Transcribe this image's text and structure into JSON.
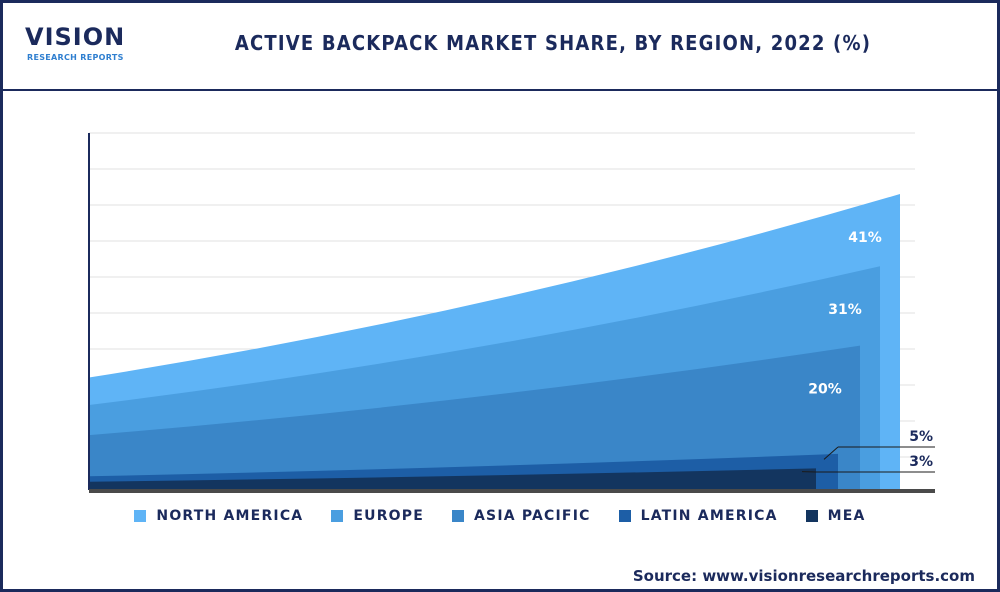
{
  "logo": {
    "name": "VISION",
    "sub": "RESEARCH REPORTS"
  },
  "source": "Source: www.visionresearchreports.com",
  "colors": {
    "north_america": "#5fb4f6",
    "europe": "#4a9ee0",
    "asia_pacific": "#3a86c8",
    "latin_america": "#1d5ea6",
    "mea": "#13355f",
    "axis": "#1b2a5c",
    "grid": "#e2e2e2"
  },
  "chart_data": {
    "type": "area",
    "title": "ACTIVE BACKPACK MARKET SHARE, BY REGION, 2022 (%)",
    "legend_position": "bottom",
    "grid": true,
    "series": [
      {
        "name": "NORTH AMERICA",
        "value": 41,
        "label": "41%"
      },
      {
        "name": "EUROPE",
        "value": 31,
        "label": "31%"
      },
      {
        "name": "ASIA PACIFIC",
        "value": 20,
        "label": "20%"
      },
      {
        "name": "LATIN AMERICA",
        "value": 5,
        "label": "5%"
      },
      {
        "name": "MEA",
        "value": 3,
        "label": "3%"
      }
    ]
  }
}
